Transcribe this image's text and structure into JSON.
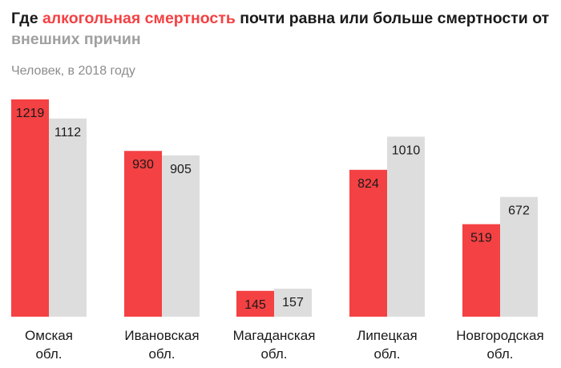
{
  "header": {
    "title_parts": [
      "Где ",
      "алкогольная смертность",
      " почти равна или больше смертности от ",
      "внешних причин"
    ],
    "subtitle": "Человек, в 2018 году"
  },
  "colors": {
    "alcohol": "#f44143",
    "external": "#dddddd",
    "title_highlight_red": "#f44143",
    "title_highlight_gray": "#a0a0a0"
  },
  "chart_data": {
    "type": "bar",
    "title": "Где алкогольная смертность почти равна или больше смертности от внешних причин",
    "subtitle": "Человек, в 2018 году",
    "categories": [
      [
        "Омская",
        "обл."
      ],
      [
        "Ивановская",
        "обл."
      ],
      [
        "Магаданская",
        "обл."
      ],
      [
        "Липецкая",
        "обл."
      ],
      [
        "Новгородская",
        "обл."
      ]
    ],
    "series": [
      {
        "name": "алкогольная смертность",
        "color": "#f44143",
        "values": [
          1219,
          930,
          145,
          824,
          519
        ]
      },
      {
        "name": "внешние причины",
        "color": "#dddddd",
        "values": [
          1112,
          905,
          157,
          1010,
          672
        ]
      }
    ],
    "ylim": [
      0,
      1219
    ],
    "grid": false,
    "legend": "none"
  }
}
